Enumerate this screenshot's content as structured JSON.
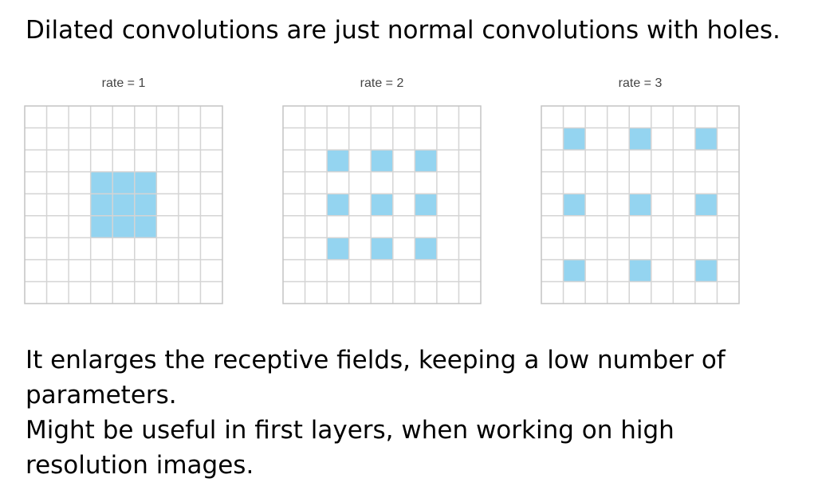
{
  "headline": "Dilated convolutions are just normal convolutions with holes.",
  "panels": [
    {
      "caption": "rate = 1",
      "rate": 1
    },
    {
      "caption": "rate = 2",
      "rate": 2
    },
    {
      "caption": "rate = 3",
      "rate": 3
    }
  ],
  "grid_cells": 9,
  "kernel_size": 3,
  "colors": {
    "kernel_fill": "#94d4f0",
    "grid_line": "#d4d4d4",
    "grid_border": "#c4c4c4"
  },
  "body": {
    "paragraph_1": "It enlarges the receptive fields, keeping a low number of parameters.",
    "paragraph_2": "Might be useful in first layers, when working on high resolution images."
  }
}
